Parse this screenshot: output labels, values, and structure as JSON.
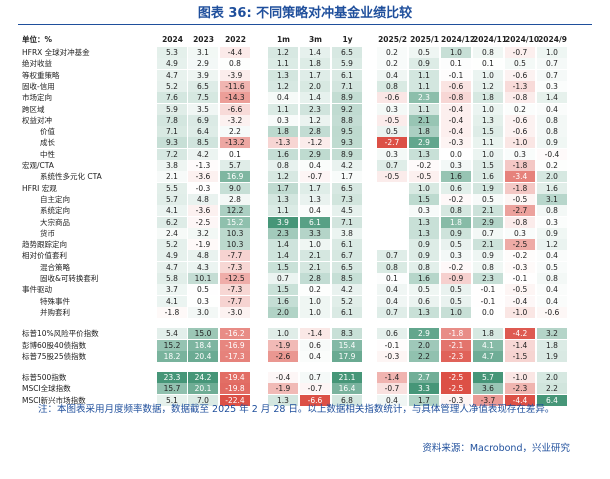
{
  "title": "图表 36: 不同策略对冲基金业绩比较",
  "header": [
    "单位：%",
    "2024",
    "2023",
    "2022",
    "1m",
    "3m",
    "1y",
    "2025/2",
    "2025/1",
    "2024/12",
    "2024/11",
    "2024/10",
    "2024/9"
  ],
  "rows": [
    {
      "label": "HFRX 全球对冲基金",
      "cells": [
        "5.3",
        "3.1",
        "-4.4",
        "1.2",
        "1.4",
        "6.5",
        "0.2",
        "0.5",
        "1.0",
        "0.8",
        "-0.7",
        "1.0"
      ]
    },
    {
      "label": "绝对收益",
      "cells": [
        "4.9",
        "2.9",
        "0.8",
        "1.1",
        "1.8",
        "5.9",
        "0.2",
        "0.9",
        "0.1",
        "0.1",
        "0.5",
        "0.7"
      ]
    },
    {
      "label": "等权重策略",
      "cells": [
        "4.7",
        "3.9",
        "-3.9",
        "1.3",
        "1.7",
        "6.1",
        "0.4",
        "1.1",
        "-0.1",
        "1.0",
        "-0.6",
        "0.7"
      ]
    },
    {
      "label": "固收-信用",
      "cells": [
        "5.2",
        "6.5",
        "-11.6",
        "1.2",
        "2.0",
        "7.1",
        "0.8",
        "1.1",
        "-0.6",
        "1.2",
        "-1.3",
        "0.3"
      ]
    },
    {
      "label": "市场定向",
      "cells": [
        "7.6",
        "7.5",
        "-14.3",
        "0.4",
        "1.4",
        "8.9",
        "-0.6",
        "2.3",
        "-0.8",
        "1.8",
        "-0.8",
        "1.4"
      ]
    },
    {
      "label": "跨区域",
      "cells": [
        "5.9",
        "3.5",
        "-6.6",
        "1.1",
        "2.3",
        "9.2",
        "0.3",
        "1.1",
        "-0.4",
        "1.0",
        "0.2",
        "0.4"
      ]
    },
    {
      "label": "权益对冲",
      "cells": [
        "7.8",
        "6.9",
        "-3.2",
        "0.3",
        "1.2",
        "8.8",
        "-0.5",
        "2.1",
        "-0.4",
        "1.3",
        "-0.6",
        "0.8"
      ]
    },
    {
      "label": "价值",
      "cells": [
        "7.1",
        "6.4",
        "2.2",
        "1.8",
        "2.8",
        "9.5",
        "0.5",
        "1.8",
        "-0.4",
        "1.5",
        "-0.6",
        "0.8"
      ]
    },
    {
      "label": "成长",
      "cells": [
        "9.3",
        "8.5",
        "-13.2",
        "-1.3",
        "-1.2",
        "9.3",
        "-2.7",
        "2.9",
        "-0.3",
        "1.1",
        "-1.0",
        "0.9"
      ]
    },
    {
      "label": "中性",
      "cells": [
        "7.2",
        "4.2",
        "0.1",
        "1.6",
        "2.9",
        "8.9",
        "0.3",
        "1.3",
        "0.0",
        "1.0",
        "0.3",
        "-0.4"
      ]
    },
    {
      "label": "宏观/CTA",
      "cells": [
        "3.8",
        "-1.3",
        "5.7",
        "0.8",
        "0.4",
        "4.2",
        "0.7",
        "-0.2",
        "0.3",
        "1.5",
        "-1.8",
        "0.2"
      ]
    },
    {
      "label": "系统性多元化 CTA",
      "cells": [
        "2.1",
        "-3.6",
        "16.9",
        "1.2",
        "-0.7",
        "1.7",
        "-0.5",
        "-0.5",
        "1.6",
        "1.6",
        "-3.4",
        "2.0"
      ]
    },
    {
      "label": "HFRI 宏观",
      "cells": [
        "5.5",
        "-0.3",
        "9.0",
        "1.7",
        "1.7",
        "6.5",
        null,
        "1.0",
        "0.6",
        "1.9",
        "-1.8",
        "1.6"
      ]
    },
    {
      "label": "自主定向",
      "cells": [
        "5.7",
        "4.8",
        "2.8",
        "1.3",
        "1.3",
        "7.3",
        null,
        "1.5",
        "-0.2",
        "0.5",
        "-0.5",
        "3.1"
      ]
    },
    {
      "label": "系统定向",
      "cells": [
        "4.1",
        "-3.6",
        "12.2",
        "1.1",
        "0.4",
        "4.5",
        null,
        "0.3",
        "0.8",
        "2.1",
        "-2.7",
        "0.8"
      ]
    },
    {
      "label": "大宗商品",
      "cells": [
        "6.2",
        "-2.5",
        "15.2",
        "3.9",
        "6.1",
        "7.1",
        null,
        "1.3",
        "1.8",
        "2.9",
        "-0.8",
        "0.3"
      ]
    },
    {
      "label": "货币",
      "cells": [
        "2.4",
        "3.2",
        "10.3",
        "2.3",
        "3.3",
        "3.8",
        null,
        "1.3",
        "0.9",
        "0.7",
        "0.3",
        "0.9"
      ]
    },
    {
      "label": "趋势跟踪定向",
      "cells": [
        "5.2",
        "-1.9",
        "10.3",
        "1.4",
        "1.0",
        "6.1",
        null,
        "0.9",
        "0.5",
        "2.1",
        "-2.5",
        "1.2"
      ]
    },
    {
      "label": "相对价值套利",
      "cells": [
        "4.9",
        "4.8",
        "-7.7",
        "1.4",
        "2.1",
        "6.7",
        "0.7",
        "0.9",
        "0.3",
        "0.9",
        "-0.2",
        "0.4"
      ]
    },
    {
      "label": "混合策略",
      "cells": [
        "4.7",
        "4.3",
        "-7.3",
        "1.5",
        "2.1",
        "6.5",
        "0.8",
        "0.8",
        "-0.2",
        "0.8",
        "-0.3",
        "0.5"
      ]
    },
    {
      "label": "固收&可转换套利",
      "cells": [
        "5.8",
        "10.1",
        "-12.5",
        "0.7",
        "2.8",
        "8.5",
        "0.1",
        "1.6",
        "-0.9",
        "2.3",
        "-0.1",
        "0.8"
      ]
    },
    {
      "label": "事件驱动",
      "cells": [
        "3.7",
        "0.5",
        "-7.3",
        "1.5",
        "0.2",
        "4.2",
        "0.4",
        "0.5",
        "0.5",
        "-0.1",
        "-0.5",
        "0.4"
      ]
    },
    {
      "label": "特殊事件",
      "cells": [
        "4.1",
        "0.3",
        "-7.7",
        "1.6",
        "1.0",
        "5.2",
        "0.4",
        "0.6",
        "0.5",
        "-0.1",
        "-0.4",
        "0.4"
      ]
    },
    {
      "label": "并购套利",
      "cells": [
        "-1.8",
        "3.0",
        "-3.0",
        "2.0",
        "1.0",
        "6.1",
        "0.7",
        "1.3",
        "1.0",
        "0.0",
        "-1.0",
        "-0.6"
      ]
    },
    {
      "label": "标普10%风险平价指数",
      "cells": [
        "5.4",
        "15.0",
        "-16.2",
        "1.0",
        "-1.4",
        "8.3",
        "0.6",
        "2.9",
        "-1.8",
        "1.8",
        "-4.2",
        "3.2"
      ]
    },
    {
      "label": "彭博60股40债指数",
      "cells": [
        "15.2",
        "18.4",
        "-16.9",
        "-1.9",
        "0.6",
        "15.4",
        "-0.1",
        "2.0",
        "-2.1",
        "4.1",
        "-1.4",
        "1.8"
      ]
    },
    {
      "label": "标普75股25债指数",
      "cells": [
        "18.2",
        "20.4",
        "-17.3",
        "-2.6",
        "0.4",
        "17.9",
        "-0.3",
        "2.2",
        "-2.3",
        "4.7",
        "-1.5",
        "1.9"
      ]
    },
    {
      "label": "标普500指数",
      "cells": [
        "23.3",
        "24.2",
        "-19.4",
        "-0.4",
        "0.7",
        "21.1",
        "-1.4",
        "2.7",
        "-2.5",
        "5.7",
        "-1.0",
        "2.0"
      ]
    },
    {
      "label": "MSCI全球指数",
      "cells": [
        "15.7",
        "20.1",
        "-19.8",
        "-1.9",
        "-0.7",
        "16.4",
        "-0.7",
        "3.3",
        "-2.5",
        "3.6",
        "-2.3",
        "2.2"
      ]
    },
    {
      "label": "MSCI新兴市场指数",
      "cells": [
        "5.1",
        "7.0",
        "-22.4",
        "1.3",
        "-6.6",
        "6.8",
        "0.4",
        "1.7",
        "-0.3",
        "-3.7",
        "-4.4",
        "6.4"
      ]
    }
  ],
  "note": "注：本图表采用月度频率数据，数据截至 2025 年 2 月 28 日。以上数据相关指数统计，与具体管理人净值表现存在差异。",
  "source": "资料来源：Macrobond，兴业研究"
}
